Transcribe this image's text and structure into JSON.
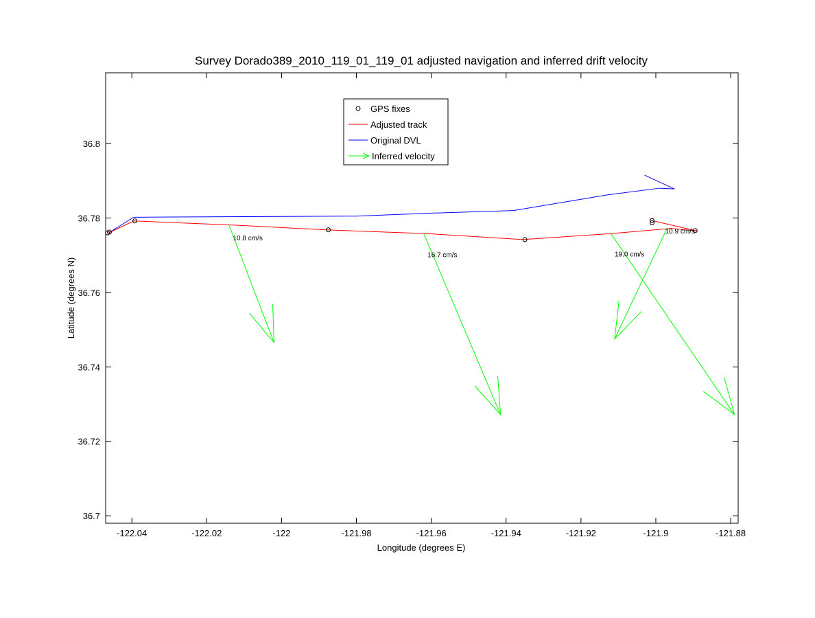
{
  "chart_data": {
    "type": "line",
    "title": "Survey Dorado389_2010_119_01_119_01 adjusted navigation and inferred drift velocity",
    "xlabel": "Longitude (degrees E)",
    "ylabel": "Latitude (degrees N)",
    "xlim": [
      -122.047,
      -121.878
    ],
    "ylim": [
      36.698,
      36.819
    ],
    "x_ticks": [
      -122.04,
      -122.02,
      -122.0,
      -121.98,
      -121.96,
      -121.94,
      -121.92,
      -121.9,
      -121.88
    ],
    "x_tick_labels": [
      "-122.04",
      "-122.02",
      "-122",
      "-121.98",
      "-121.96",
      "-121.94",
      "-121.92",
      "-121.9",
      "-121.88"
    ],
    "y_ticks": [
      36.7,
      36.72,
      36.74,
      36.76,
      36.78,
      36.8
    ],
    "y_tick_labels": [
      "36.7",
      "36.72",
      "36.74",
      "36.76",
      "36.78",
      "36.8"
    ],
    "grid": false,
    "legend": {
      "placement": "top-center",
      "entries": [
        {
          "label": "GPS fixes",
          "color": "#000000",
          "style": "marker-circle"
        },
        {
          "label": "Adjusted track",
          "color": "#ff0000",
          "style": "line"
        },
        {
          "label": "Original DVL",
          "color": "#0000ff",
          "style": "line"
        },
        {
          "label": "Inferred velocity",
          "color": "#00ff00",
          "style": "arrow"
        }
      ]
    },
    "series": [
      {
        "name": "Adjusted track",
        "color": "#ff0000",
        "points": [
          [
            -122.0462,
            36.776
          ],
          [
            -122.0395,
            36.7792
          ],
          [
            -122.013,
            36.7781
          ],
          [
            -121.988,
            36.7768
          ],
          [
            -121.961,
            36.7758
          ],
          [
            -121.9355,
            36.7742
          ],
          [
            -121.912,
            36.7758
          ],
          [
            -121.896,
            36.7772
          ],
          [
            -121.889,
            36.7765
          ],
          [
            -121.901,
            36.7793
          ]
        ]
      },
      {
        "name": "Original DVL",
        "color": "#0000ff",
        "points": [
          [
            -122.0462,
            36.776
          ],
          [
            -122.0395,
            36.7802
          ],
          [
            -122.0,
            36.7804
          ],
          [
            -121.98,
            36.7805
          ],
          [
            -121.96,
            36.7813
          ],
          [
            -121.938,
            36.782
          ],
          [
            -121.913,
            36.7862
          ],
          [
            -121.899,
            36.788
          ],
          [
            -121.895,
            36.7878
          ],
          [
            -121.903,
            36.7915
          ]
        ]
      },
      {
        "name": "GPS fixes",
        "color": "#000000",
        "points": [
          [
            -122.0465,
            36.776
          ],
          [
            -122.046,
            36.7762
          ],
          [
            -122.0392,
            36.7792
          ],
          [
            -121.9875,
            36.7768
          ],
          [
            -121.935,
            36.7742
          ],
          [
            -121.901,
            36.7787
          ],
          [
            -121.901,
            36.7793
          ],
          [
            -121.8895,
            36.7766
          ]
        ]
      }
    ],
    "velocities": [
      {
        "x0": -122.014,
        "y0": 36.778,
        "x1": -122.002,
        "y1": 36.7465,
        "label": "10.8 cm/s"
      },
      {
        "x0": -121.962,
        "y0": 36.7758,
        "x1": -121.9415,
        "y1": 36.7272,
        "label": "16.7 cm/s"
      },
      {
        "x0": -121.897,
        "y0": 36.7772,
        "x1": -121.911,
        "y1": 36.7475,
        "label": "10.9 cm/s"
      },
      {
        "x0": -121.912,
        "y0": 36.7758,
        "x1": -121.879,
        "y1": 36.7272,
        "label": "19.0 cm/s"
      }
    ],
    "velocity_labels_pos": [
      {
        "label": "10.8 cm/s",
        "x": -122.013,
        "y": 36.774
      },
      {
        "label": "16.7 cm/s",
        "x": -121.961,
        "y": 36.7695
      },
      {
        "label": "19.0 cm/s",
        "x": -121.911,
        "y": 36.7697
      },
      {
        "label": "10.9 cm/s",
        "x": -121.8975,
        "y": 36.7758
      }
    ]
  }
}
